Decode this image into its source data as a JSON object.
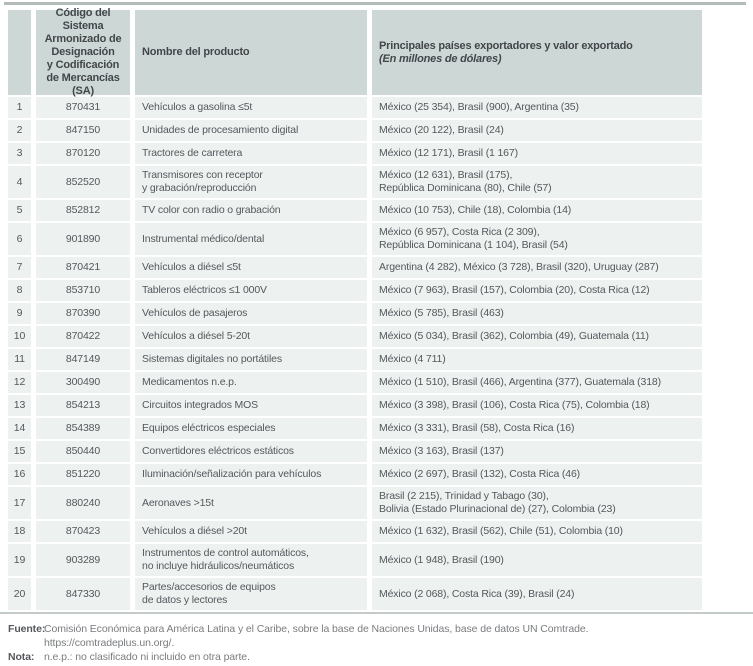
{
  "table": {
    "headers": {
      "number": "",
      "code": "Código del Sistema\nArmonizado de\nDesignación\ny Codificación\nde Mercancías (SA)",
      "product": "Nombre del producto",
      "countries_line1": "Principales países exportadores y valor exportado",
      "countries_line2": "(En millones de dólares)"
    },
    "rows": [
      {
        "num": "1",
        "code": "870431",
        "product": "Vehículos a gasolina ≤5t",
        "exporters": "México (25 354), Brasil (900), Argentina (35)"
      },
      {
        "num": "2",
        "code": "847150",
        "product": "Unidades de procesamiento digital",
        "exporters": "México (20 122), Brasil (24)"
      },
      {
        "num": "3",
        "code": "870120",
        "product": "Tractores de carretera",
        "exporters": "México (12 171), Brasil (1 167)"
      },
      {
        "num": "4",
        "code": "852520",
        "product": "Transmisores con receptor\ny grabación/reproducción",
        "exporters": "México (12 631), Brasil (175),\nRepública Dominicana (80), Chile (57)"
      },
      {
        "num": "5",
        "code": "852812",
        "product": "TV color con radio o grabación",
        "exporters": "México (10 753), Chile (18), Colombia (14)"
      },
      {
        "num": "6",
        "code": "901890",
        "product": "Instrumental médico/dental",
        "exporters": "México (6 957), Costa Rica (2 309),\nRepública Dominicana (1 104), Brasil (54)"
      },
      {
        "num": "7",
        "code": "870421",
        "product": "Vehículos a diésel ≤5t",
        "exporters": "Argentina (4 282), México (3 728), Brasil (320), Uruguay (287)"
      },
      {
        "num": "8",
        "code": "853710",
        "product": "Tableros eléctricos ≤1 000V",
        "exporters": "México (7 963), Brasil (157), Colombia (20), Costa Rica (12)"
      },
      {
        "num": "9",
        "code": "870390",
        "product": "Vehículos de pasajeros",
        "exporters": "México (5 785), Brasil (463)"
      },
      {
        "num": "10",
        "code": "870422",
        "product": "Vehículos a diésel 5-20t",
        "exporters": "México (5 034), Brasil (362), Colombia (49), Guatemala (11)"
      },
      {
        "num": "11",
        "code": "847149",
        "product": "Sistemas digitales no portátiles",
        "exporters": "México (4 711)"
      },
      {
        "num": "12",
        "code": "300490",
        "product": "Medicamentos n.e.p.",
        "exporters": "México (1 510), Brasil (466), Argentina (377), Guatemala (318)"
      },
      {
        "num": "13",
        "code": "854213",
        "product": "Circuitos integrados MOS",
        "exporters": "México (3 398), Brasil (106), Costa Rica (75), Colombia (18)"
      },
      {
        "num": "14",
        "code": "854389",
        "product": "Equipos eléctricos especiales",
        "exporters": "México (3 331), Brasil (58), Costa Rica (16)"
      },
      {
        "num": "15",
        "code": "850440",
        "product": "Convertidores eléctricos estáticos",
        "exporters": "México (3 163), Brasil (137)"
      },
      {
        "num": "16",
        "code": "851220",
        "product": "Iluminación/señalización para vehículos",
        "exporters": "México (2 697), Brasil (132), Costa Rica (46)"
      },
      {
        "num": "17",
        "code": "880240",
        "product": "Aeronaves >15t",
        "exporters": "Brasil (2 215), Trinidad y Tabago (30),\nBolivia (Estado Plurinacional de) (27), Colombia (23)"
      },
      {
        "num": "18",
        "code": "870423",
        "product": "Vehículos a diésel >20t",
        "exporters": "México (1 632), Brasil (562), Chile (51), Colombia (10)"
      },
      {
        "num": "19",
        "code": "903289",
        "product": "Instrumentos de control automáticos,\nno incluye hidráulicos/neumáticos",
        "exporters": "México (1 948), Brasil (190)"
      },
      {
        "num": "20",
        "code": "847330",
        "product": "Partes/accesorios de equipos\nde datos y lectores",
        "exporters": "México (2 068), Costa Rica (39), Brasil (24)"
      }
    ]
  },
  "footer": {
    "source_label": "Fuente:",
    "source_text": "Comisión Económica para América Latina y el Caribe, sobre la base de Naciones Unidas, base de datos UN Comtrade.\nhttps://comtradeplus.un.org/.",
    "note_label": "Nota:",
    "note_text": "n.e.p.: no clasificado ni incluido en otra parte."
  },
  "colors": {
    "header_bg": "#cdd8d6",
    "row_bg": "#edf1f0",
    "top_rule": "#b2bbba",
    "bottom_rule": "#c2cbca",
    "header_text": "#42464a",
    "body_text": "#55585c",
    "footnote_text": "#7a7c7f"
  }
}
